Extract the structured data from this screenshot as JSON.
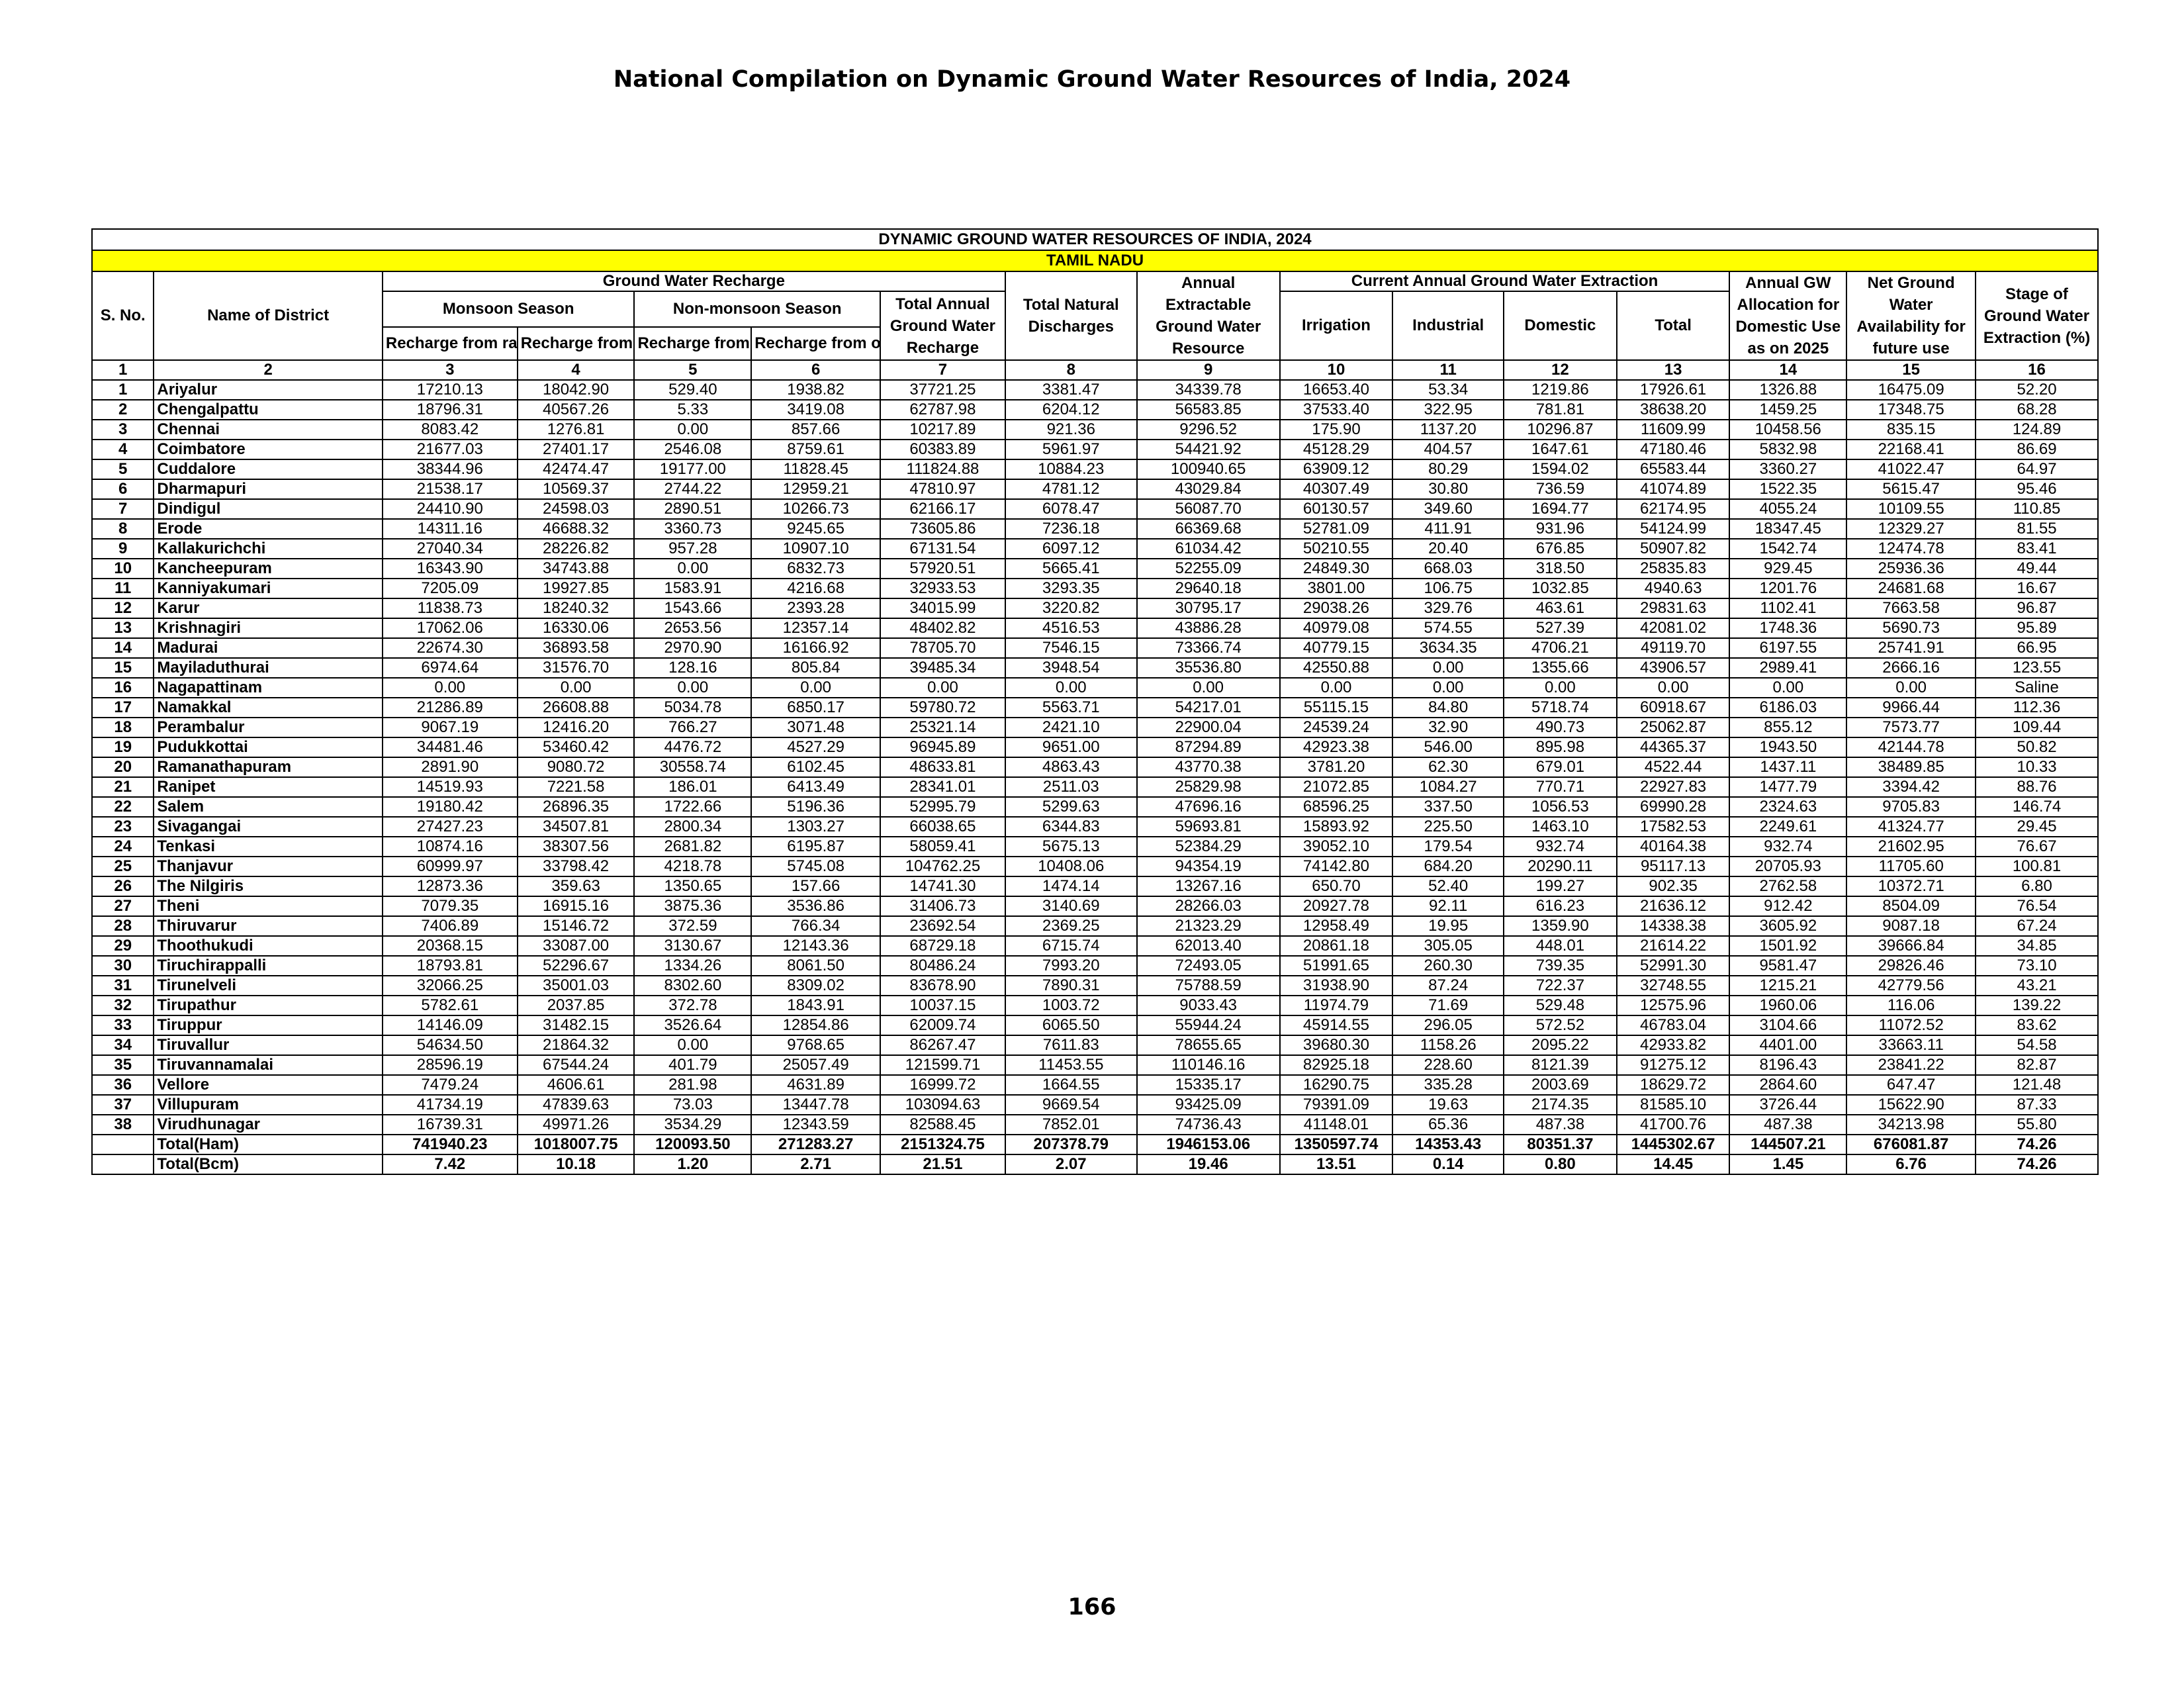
{
  "page": {
    "title": "National Compilation on Dynamic Ground Water Resources of India, 2024",
    "page_number": "166"
  },
  "table": {
    "banner": "DYNAMIC GROUND WATER RESOURCES OF INDIA, 2024",
    "state": "TAMIL NADU",
    "headers": {
      "sno": "S. No.",
      "district": "Name of District",
      "gw_recharge": "Ground Water Recharge",
      "monsoon": "Monsoon Season",
      "non_monsoon": "Non-monsoon Season",
      "recharge_rainfall_m": "Recharge from rainfall",
      "recharge_other_m": "Recharge from other sources",
      "recharge_rainfall_nm": "Recharge from rainfall",
      "recharge_other_nm": "Recharge from other sources",
      "total_recharge": "Total Annual Ground Water Recharge",
      "natural_discharges": "Total Natural Discharges",
      "extractable": "Annual Extractable Ground Water Resource",
      "extraction_group": "Current Annual Ground Water Extraction",
      "irrigation": "Irrigation",
      "industrial": "Industrial",
      "domestic": "Domestic",
      "total": "Total",
      "allocation": "Annual GW Allocation for Domestic Use as on 2025",
      "net_availability": "Net Ground Water Availability for future use",
      "stage": "Stage of Ground Water Extraction (%)"
    },
    "column_numbers": [
      "1",
      "2",
      "3",
      "4",
      "5",
      "6",
      "7",
      "8",
      "9",
      "10",
      "11",
      "12",
      "13",
      "14",
      "15",
      "16"
    ],
    "rows": [
      [
        "1",
        "Ariyalur",
        "17210.13",
        "18042.90",
        "529.40",
        "1938.82",
        "37721.25",
        "3381.47",
        "34339.78",
        "16653.40",
        "53.34",
        "1219.86",
        "17926.61",
        "1326.88",
        "16475.09",
        "52.20"
      ],
      [
        "2",
        "Chengalpattu",
        "18796.31",
        "40567.26",
        "5.33",
        "3419.08",
        "62787.98",
        "6204.12",
        "56583.85",
        "37533.40",
        "322.95",
        "781.81",
        "38638.20",
        "1459.25",
        "17348.75",
        "68.28"
      ],
      [
        "3",
        "Chennai",
        "8083.42",
        "1276.81",
        "0.00",
        "857.66",
        "10217.89",
        "921.36",
        "9296.52",
        "175.90",
        "1137.20",
        "10296.87",
        "11609.99",
        "10458.56",
        "835.15",
        "124.89"
      ],
      [
        "4",
        "Coimbatore",
        "21677.03",
        "27401.17",
        "2546.08",
        "8759.61",
        "60383.89",
        "5961.97",
        "54421.92",
        "45128.29",
        "404.57",
        "1647.61",
        "47180.46",
        "5832.98",
        "22168.41",
        "86.69"
      ],
      [
        "5",
        "Cuddalore",
        "38344.96",
        "42474.47",
        "19177.00",
        "11828.45",
        "111824.88",
        "10884.23",
        "100940.65",
        "63909.12",
        "80.29",
        "1594.02",
        "65583.44",
        "3360.27",
        "41022.47",
        "64.97"
      ],
      [
        "6",
        "Dharmapuri",
        "21538.17",
        "10569.37",
        "2744.22",
        "12959.21",
        "47810.97",
        "4781.12",
        "43029.84",
        "40307.49",
        "30.80",
        "736.59",
        "41074.89",
        "1522.35",
        "5615.47",
        "95.46"
      ],
      [
        "7",
        "Dindigul",
        "24410.90",
        "24598.03",
        "2890.51",
        "10266.73",
        "62166.17",
        "6078.47",
        "56087.70",
        "60130.57",
        "349.60",
        "1694.77",
        "62174.95",
        "4055.24",
        "10109.55",
        "110.85"
      ],
      [
        "8",
        "Erode",
        "14311.16",
        "46688.32",
        "3360.73",
        "9245.65",
        "73605.86",
        "7236.18",
        "66369.68",
        "52781.09",
        "411.91",
        "931.96",
        "54124.99",
        "18347.45",
        "12329.27",
        "81.55"
      ],
      [
        "9",
        "Kallakurichchi",
        "27040.34",
        "28226.82",
        "957.28",
        "10907.10",
        "67131.54",
        "6097.12",
        "61034.42",
        "50210.55",
        "20.40",
        "676.85",
        "50907.82",
        "1542.74",
        "12474.78",
        "83.41"
      ],
      [
        "10",
        "Kancheepuram",
        "16343.90",
        "34743.88",
        "0.00",
        "6832.73",
        "57920.51",
        "5665.41",
        "52255.09",
        "24849.30",
        "668.03",
        "318.50",
        "25835.83",
        "929.45",
        "25936.36",
        "49.44"
      ],
      [
        "11",
        "Kanniyakumari",
        "7205.09",
        "19927.85",
        "1583.91",
        "4216.68",
        "32933.53",
        "3293.35",
        "29640.18",
        "3801.00",
        "106.75",
        "1032.85",
        "4940.63",
        "1201.76",
        "24681.68",
        "16.67"
      ],
      [
        "12",
        "Karur",
        "11838.73",
        "18240.32",
        "1543.66",
        "2393.28",
        "34015.99",
        "3220.82",
        "30795.17",
        "29038.26",
        "329.76",
        "463.61",
        "29831.63",
        "1102.41",
        "7663.58",
        "96.87"
      ],
      [
        "13",
        "Krishnagiri",
        "17062.06",
        "16330.06",
        "2653.56",
        "12357.14",
        "48402.82",
        "4516.53",
        "43886.28",
        "40979.08",
        "574.55",
        "527.39",
        "42081.02",
        "1748.36",
        "5690.73",
        "95.89"
      ],
      [
        "14",
        "Madurai",
        "22674.30",
        "36893.58",
        "2970.90",
        "16166.92",
        "78705.70",
        "7546.15",
        "73366.74",
        "40779.15",
        "3634.35",
        "4706.21",
        "49119.70",
        "6197.55",
        "25741.91",
        "66.95"
      ],
      [
        "15",
        "Mayiladuthurai",
        "6974.64",
        "31576.70",
        "128.16",
        "805.84",
        "39485.34",
        "3948.54",
        "35536.80",
        "42550.88",
        "0.00",
        "1355.66",
        "43906.57",
        "2989.41",
        "2666.16",
        "123.55"
      ],
      [
        "16",
        "Nagapattinam",
        "0.00",
        "0.00",
        "0.00",
        "0.00",
        "0.00",
        "0.00",
        "0.00",
        "0.00",
        "0.00",
        "0.00",
        "0.00",
        "0.00",
        "0.00",
        "Saline"
      ],
      [
        "17",
        "Namakkal",
        "21286.89",
        "26608.88",
        "5034.78",
        "6850.17",
        "59780.72",
        "5563.71",
        "54217.01",
        "55115.15",
        "84.80",
        "5718.74",
        "60918.67",
        "6186.03",
        "9966.44",
        "112.36"
      ],
      [
        "18",
        "Perambalur",
        "9067.19",
        "12416.20",
        "766.27",
        "3071.48",
        "25321.14",
        "2421.10",
        "22900.04",
        "24539.24",
        "32.90",
        "490.73",
        "25062.87",
        "855.12",
        "7573.77",
        "109.44"
      ],
      [
        "19",
        "Pudukkottai",
        "34481.46",
        "53460.42",
        "4476.72",
        "4527.29",
        "96945.89",
        "9651.00",
        "87294.89",
        "42923.38",
        "546.00",
        "895.98",
        "44365.37",
        "1943.50",
        "42144.78",
        "50.82"
      ],
      [
        "20",
        "Ramanathapuram",
        "2891.90",
        "9080.72",
        "30558.74",
        "6102.45",
        "48633.81",
        "4863.43",
        "43770.38",
        "3781.20",
        "62.30",
        "679.01",
        "4522.44",
        "1437.11",
        "38489.85",
        "10.33"
      ],
      [
        "21",
        "Ranipet",
        "14519.93",
        "7221.58",
        "186.01",
        "6413.49",
        "28341.01",
        "2511.03",
        "25829.98",
        "21072.85",
        "1084.27",
        "770.71",
        "22927.83",
        "1477.79",
        "3394.42",
        "88.76"
      ],
      [
        "22",
        "Salem",
        "19180.42",
        "26896.35",
        "1722.66",
        "5196.36",
        "52995.79",
        "5299.63",
        "47696.16",
        "68596.25",
        "337.50",
        "1056.53",
        "69990.28",
        "2324.63",
        "9705.83",
        "146.74"
      ],
      [
        "23",
        "Sivagangai",
        "27427.23",
        "34507.81",
        "2800.34",
        "1303.27",
        "66038.65",
        "6344.83",
        "59693.81",
        "15893.92",
        "225.50",
        "1463.10",
        "17582.53",
        "2249.61",
        "41324.77",
        "29.45"
      ],
      [
        "24",
        "Tenkasi",
        "10874.16",
        "38307.56",
        "2681.82",
        "6195.87",
        "58059.41",
        "5675.13",
        "52384.29",
        "39052.10",
        "179.54",
        "932.74",
        "40164.38",
        "932.74",
        "21602.95",
        "76.67"
      ],
      [
        "25",
        "Thanjavur",
        "60999.97",
        "33798.42",
        "4218.78",
        "5745.08",
        "104762.25",
        "10408.06",
        "94354.19",
        "74142.80",
        "684.20",
        "20290.11",
        "95117.13",
        "20705.93",
        "11705.60",
        "100.81"
      ],
      [
        "26",
        "The Nilgiris",
        "12873.36",
        "359.63",
        "1350.65",
        "157.66",
        "14741.30",
        "1474.14",
        "13267.16",
        "650.70",
        "52.40",
        "199.27",
        "902.35",
        "2762.58",
        "10372.71",
        "6.80"
      ],
      [
        "27",
        "Theni",
        "7079.35",
        "16915.16",
        "3875.36",
        "3536.86",
        "31406.73",
        "3140.69",
        "28266.03",
        "20927.78",
        "92.11",
        "616.23",
        "21636.12",
        "912.42",
        "8504.09",
        "76.54"
      ],
      [
        "28",
        "Thiruvarur",
        "7406.89",
        "15146.72",
        "372.59",
        "766.34",
        "23692.54",
        "2369.25",
        "21323.29",
        "12958.49",
        "19.95",
        "1359.90",
        "14338.38",
        "3605.92",
        "9087.18",
        "67.24"
      ],
      [
        "29",
        "Thoothukudi",
        "20368.15",
        "33087.00",
        "3130.67",
        "12143.36",
        "68729.18",
        "6715.74",
        "62013.40",
        "20861.18",
        "305.05",
        "448.01",
        "21614.22",
        "1501.92",
        "39666.84",
        "34.85"
      ],
      [
        "30",
        "Tiruchirappalli",
        "18793.81",
        "52296.67",
        "1334.26",
        "8061.50",
        "80486.24",
        "7993.20",
        "72493.05",
        "51991.65",
        "260.30",
        "739.35",
        "52991.30",
        "9581.47",
        "29826.46",
        "73.10"
      ],
      [
        "31",
        "Tirunelveli",
        "32066.25",
        "35001.03",
        "8302.60",
        "8309.02",
        "83678.90",
        "7890.31",
        "75788.59",
        "31938.90",
        "87.24",
        "722.37",
        "32748.55",
        "1215.21",
        "42779.56",
        "43.21"
      ],
      [
        "32",
        "Tirupathur",
        "5782.61",
        "2037.85",
        "372.78",
        "1843.91",
        "10037.15",
        "1003.72",
        "9033.43",
        "11974.79",
        "71.69",
        "529.48",
        "12575.96",
        "1960.06",
        "116.06",
        "139.22"
      ],
      [
        "33",
        "Tiruppur",
        "14146.09",
        "31482.15",
        "3526.64",
        "12854.86",
        "62009.74",
        "6065.50",
        "55944.24",
        "45914.55",
        "296.05",
        "572.52",
        "46783.04",
        "3104.66",
        "11072.52",
        "83.62"
      ],
      [
        "34",
        "Tiruvallur",
        "54634.50",
        "21864.32",
        "0.00",
        "9768.65",
        "86267.47",
        "7611.83",
        "78655.65",
        "39680.30",
        "1158.26",
        "2095.22",
        "42933.82",
        "4401.00",
        "33663.11",
        "54.58"
      ],
      [
        "35",
        "Tiruvannamalai",
        "28596.19",
        "67544.24",
        "401.79",
        "25057.49",
        "121599.71",
        "11453.55",
        "110146.16",
        "82925.18",
        "228.60",
        "8121.39",
        "91275.12",
        "8196.43",
        "23841.22",
        "82.87"
      ],
      [
        "36",
        "Vellore",
        "7479.24",
        "4606.61",
        "281.98",
        "4631.89",
        "16999.72",
        "1664.55",
        "15335.17",
        "16290.75",
        "335.28",
        "2003.69",
        "18629.72",
        "2864.60",
        "647.47",
        "121.48"
      ],
      [
        "37",
        "Villupuram",
        "41734.19",
        "47839.63",
        "73.03",
        "13447.78",
        "103094.63",
        "9669.54",
        "93425.09",
        "79391.09",
        "19.63",
        "2174.35",
        "81585.10",
        "3726.44",
        "15622.90",
        "87.33"
      ],
      [
        "38",
        "Virudhunagar",
        "16739.31",
        "49971.26",
        "3534.29",
        "12343.59",
        "82588.45",
        "7852.01",
        "74736.43",
        "41148.01",
        "65.36",
        "487.38",
        "41700.76",
        "487.38",
        "34213.98",
        "55.80"
      ]
    ],
    "totals": [
      [
        "",
        "Total(Ham)",
        "741940.23",
        "1018007.75",
        "120093.50",
        "271283.27",
        "2151324.75",
        "207378.79",
        "1946153.06",
        "1350597.74",
        "14353.43",
        "80351.37",
        "1445302.67",
        "144507.21",
        "676081.87",
        "74.26"
      ],
      [
        "",
        "Total(Bcm)",
        "7.42",
        "10.18",
        "1.20",
        "2.71",
        "21.51",
        "2.07",
        "19.46",
        "13.51",
        "0.14",
        "0.80",
        "14.45",
        "1.45",
        "6.76",
        "74.26"
      ]
    ]
  }
}
